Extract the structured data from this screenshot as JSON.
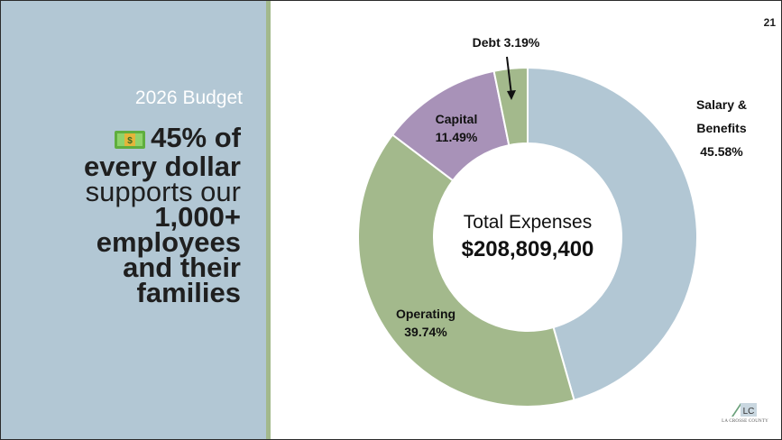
{
  "slide": {
    "page_number": "21",
    "budget_year": "2026 Budget",
    "headline": {
      "part1": "45% of",
      "part2": "every dollar",
      "part3": "supports our",
      "part4": "1,000+",
      "part5": "employees",
      "part6": "and their",
      "part7": "families"
    },
    "icon": "money-bill-icon",
    "logo": {
      "mark_text": "LC",
      "name": "LA CROSSE COUNTY"
    }
  },
  "colors": {
    "left_panel": "#b2c7d4",
    "divider": "#a3b98c",
    "salary": "#b2c7d4",
    "operating": "#a3b98c",
    "capital": "#a892b8",
    "debt": "#a3b98c"
  },
  "chart_data": {
    "type": "pie",
    "variant": "donut",
    "center_title": "Total Expenses",
    "center_value": "$208,809,400",
    "slices": [
      {
        "name": "Salary & Benefits",
        "label_line1": "Salary &",
        "label_line2": "Benefits",
        "value_label": "45.58%",
        "value": 45.58,
        "color": "#b2c7d4"
      },
      {
        "name": "Operating",
        "label_line1": "Operating",
        "value_label": "39.74%",
        "value": 39.74,
        "color": "#a3b98c"
      },
      {
        "name": "Capital",
        "label_line1": "Capital",
        "value_label": "11.49%",
        "value": 11.49,
        "color": "#a892b8"
      },
      {
        "name": "Debt",
        "label_line1": "Debt 3.19%",
        "value": 3.19,
        "color": "#a3b98c"
      }
    ]
  }
}
